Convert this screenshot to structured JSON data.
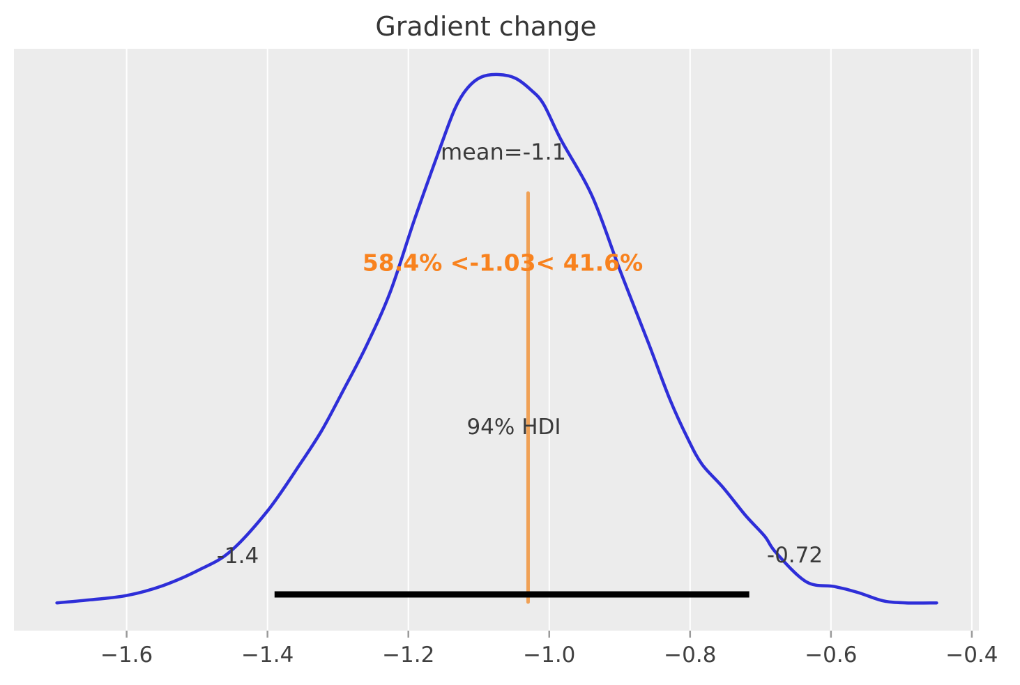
{
  "chart_data": {
    "type": "line",
    "subtype": "kde-posterior-density",
    "title": "Gradient change",
    "xlabel": "",
    "ylabel": "",
    "xlim": [
      -1.76,
      -0.39
    ],
    "grid": true,
    "x_ticks": [
      -1.6,
      -1.4,
      -1.2,
      -1.0,
      -0.8,
      -0.6,
      -0.4
    ],
    "x_tick_labels": [
      "−1.6",
      "−1.4",
      "−1.2",
      "−1.0",
      "−0.8",
      "−0.6",
      "−0.4"
    ],
    "mean": -1.1,
    "ref_value": -1.03,
    "percent_below_ref": 58.4,
    "percent_above_ref": 41.6,
    "hdi": {
      "prob": 0.94,
      "lower": -1.39,
      "upper": -0.716,
      "lower_label": "-1.4",
      "upper_label": "-0.72"
    },
    "series": [
      {
        "name": "posterior-kde",
        "points": [
          [
            -1.699,
            0.001
          ],
          [
            -1.651,
            0.007
          ],
          [
            -1.6,
            0.015
          ],
          [
            -1.548,
            0.034
          ],
          [
            -1.498,
            0.063
          ],
          [
            -1.453,
            0.098
          ],
          [
            -1.4,
            0.175
          ],
          [
            -1.354,
            0.263
          ],
          [
            -1.323,
            0.327
          ],
          [
            -1.292,
            0.404
          ],
          [
            -1.26,
            0.486
          ],
          [
            -1.226,
            0.588
          ],
          [
            -1.191,
            0.727
          ],
          [
            -1.154,
            0.865
          ],
          [
            -1.134,
            0.935
          ],
          [
            -1.117,
            0.973
          ],
          [
            -1.097,
            0.995
          ],
          [
            -1.072,
            1.0
          ],
          [
            -1.048,
            0.993
          ],
          [
            -1.026,
            0.971
          ],
          [
            -1.008,
            0.944
          ],
          [
            -0.983,
            0.876
          ],
          [
            -0.939,
            0.77
          ],
          [
            -0.899,
            0.628
          ],
          [
            -0.859,
            0.492
          ],
          [
            -0.829,
            0.387
          ],
          [
            -0.803,
            0.311
          ],
          [
            -0.783,
            0.263
          ],
          [
            -0.753,
            0.219
          ],
          [
            -0.721,
            0.166
          ],
          [
            -0.694,
            0.127
          ],
          [
            -0.678,
            0.096
          ],
          [
            -0.635,
            0.041
          ],
          [
            -0.595,
            0.032
          ],
          [
            -0.562,
            0.021
          ],
          [
            -0.526,
            0.005
          ],
          [
            -0.493,
            0.001
          ],
          [
            -0.45,
            0.001
          ]
        ]
      }
    ],
    "colors": {
      "plot_background": "#ececec",
      "gridline": "#ffffff",
      "curve": "#2e2ed8",
      "ref_line": "#f0a156",
      "interval_text": "#f8821e",
      "hdi_bar": "#000000",
      "text": "#3a3a3a",
      "tick_text": "#404040",
      "tick_mark": "#9a9a9a"
    }
  },
  "annotations": {
    "title": "Gradient change",
    "mean_label": "mean=-1.1",
    "interval_label": "58.4% <-1.03< 41.6%",
    "hdi_text": "94% HDI",
    "hdi_lower_label": "-1.4",
    "hdi_upper_label": "-0.72"
  }
}
